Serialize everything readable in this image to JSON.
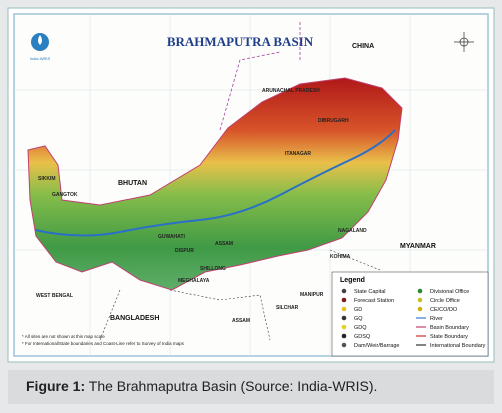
{
  "map": {
    "title": "BRAHMAPUTRA BASIN",
    "logo_text": "India-WRIS",
    "labels": [
      "CHINA",
      "ARUNACHAL PRADESH",
      "BHUTAN",
      "SIKKIM",
      "GANGTOK",
      "ASSAM",
      "GUWAHATI",
      "DISPUR",
      "ITANAGAR",
      "DIBRUGARH",
      "NAGALAND",
      "KOHIMA",
      "MYANMAR",
      "MEGHALAYA",
      "SHILLONG",
      "WEST BENGAL",
      "BANGLADESH",
      "MANIPUR",
      "SILCHAR",
      "ASSAM"
    ],
    "legend": {
      "title": "Legend",
      "items": [
        "State Capital",
        "Forecast Station",
        "GD",
        "GQ",
        "GDQ",
        "GDSQ",
        "Dam/Weir/Barrage",
        "Divisional Office",
        "Circle Office",
        "CE/CO/DO",
        "River",
        "Basin Boundary",
        "State Boundary",
        "International Boundary"
      ]
    },
    "notes": [
      "* All sites are not shown at this map scale",
      "* For International/State boundaries and Coast-Line refer to Survey of India maps"
    ]
  },
  "caption": {
    "label": "Figure 1:",
    "text": " The Brahmaputra Basin (Source: India-WRIS)."
  }
}
